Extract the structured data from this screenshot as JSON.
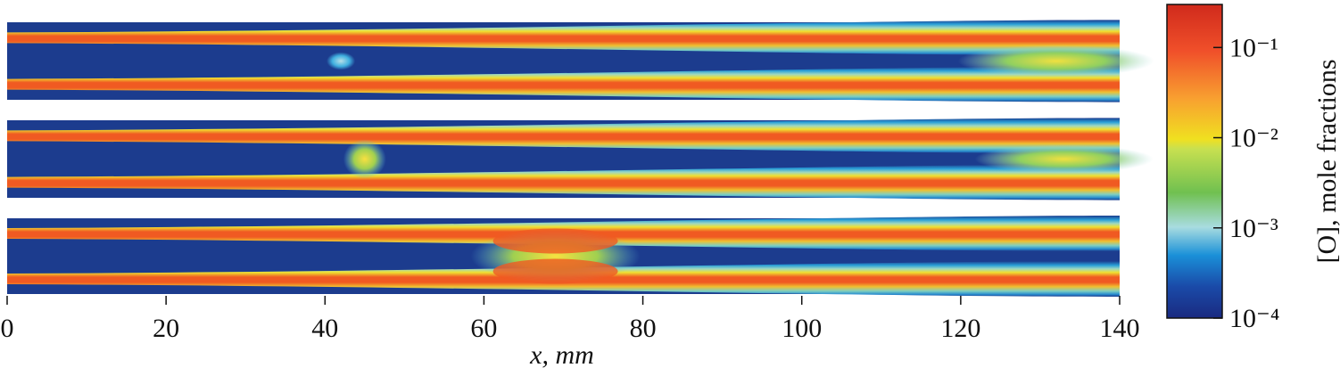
{
  "chart_data": {
    "type": "heatmap",
    "x_label": "x, mm",
    "xlim": [
      0,
      140
    ],
    "xticks": [
      0,
      20,
      40,
      60,
      80,
      100,
      120,
      140
    ],
    "colorbar": {
      "label": "[O], mole fractions",
      "scale": "log",
      "lim": [
        0.0001,
        0.3
      ],
      "ticks": [
        {
          "value": 0.0001,
          "label": "10⁻⁴"
        },
        {
          "value": 0.001,
          "label": "10⁻³"
        },
        {
          "value": 0.01,
          "label": "10⁻²"
        },
        {
          "value": 0.1,
          "label": "10⁻¹"
        }
      ]
    }
  }
}
